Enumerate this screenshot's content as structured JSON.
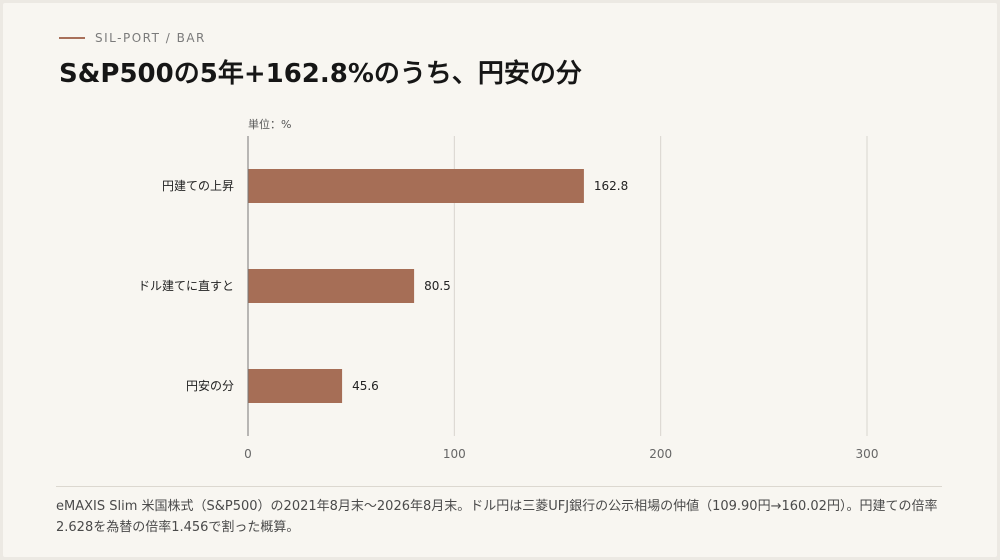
{
  "header": {
    "kicker": "SIL-PORT / BAR",
    "title": "S&P500の5年+162.8%のうち、円安の分"
  },
  "chart_data": {
    "type": "bar",
    "orientation": "horizontal",
    "title": "S&P500の5年+162.8%のうち、円安の分",
    "unit_label": "単位：%",
    "categories": [
      "円建ての上昇",
      "ドル建てに直すと",
      "円安の分"
    ],
    "values": [
      162.8,
      80.5,
      45.6
    ],
    "value_labels": [
      "162.8",
      "80.5",
      "45.6"
    ],
    "xlim": [
      0,
      300
    ],
    "xticks": [
      0,
      100,
      200,
      300
    ],
    "grid": true,
    "bar_color": "#a66e56"
  },
  "footer": {
    "note": "eMAXIS Slim 米国株式（S&P500）の2021年8月末〜2026年8月末。ドル円は三菱UFJ銀行の公示相場の仲値（109.90円→160.02円）。円建ての倍率2.628を為替の倍率1.456で割った概算。"
  }
}
